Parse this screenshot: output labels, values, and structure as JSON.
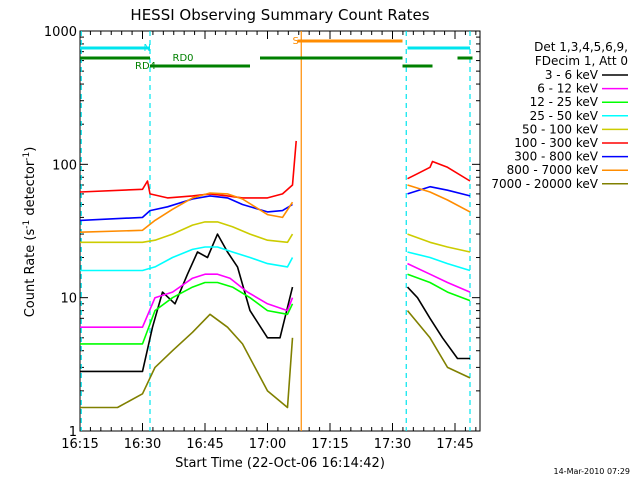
{
  "chart_data": {
    "type": "line",
    "title": "HESSI Observing Summary Count Rates",
    "xlabel": "Start Time (22-Oct-06 16:14:42)",
    "ylabel_main": "Count Rate (s",
    "ylabel_sup1": "-1",
    "ylabel_mid": " detector",
    "ylabel_sup2": "-1",
    "ylabel_end": ")",
    "footer": "14-Mar-2010 07:29",
    "xlim": [
      16.25,
      17.85
    ],
    "ylim": [
      1,
      1000
    ],
    "yscale": "log",
    "x_ticks": [
      {
        "t": 16.25,
        "label": "16:15"
      },
      {
        "t": 16.5,
        "label": "16:30"
      },
      {
        "t": 16.75,
        "label": "16:45"
      },
      {
        "t": 17.0,
        "label": "17:00"
      },
      {
        "t": 17.25,
        "label": "17:15"
      },
      {
        "t": 17.5,
        "label": "17:30"
      },
      {
        "t": 17.75,
        "label": "17:45"
      }
    ],
    "y_ticks": [
      {
        "v": 1,
        "label": "1"
      },
      {
        "v": 10,
        "label": "10"
      },
      {
        "v": 100,
        "label": "100"
      },
      {
        "v": 1000,
        "label": "1000"
      }
    ],
    "legend_header": [
      "Det 1,3,4,5,6,9,",
      "FDecim 1, Att 0"
    ],
    "legend_placement": "right, outside plot",
    "annotations": {
      "N": {
        "label": "N",
        "t": [
          16.25,
          16.53
        ],
        "color": "#00e5ee"
      },
      "N2": {
        "label": "",
        "t": [
          17.56,
          17.81
        ],
        "color": "#00e5ee"
      },
      "S": {
        "label": "S",
        "t": [
          17.12,
          17.54
        ],
        "color": "#ff8c00"
      },
      "RD0": {
        "label": "RD0",
        "t": [
          16.25,
          16.53,
          16.97,
          17.54,
          17.76,
          17.82
        ],
        "color": "#008000"
      },
      "RD4": {
        "label": "RD4",
        "t": [
          16.53,
          16.93,
          17.54,
          17.66
        ],
        "color": "#008000"
      }
    },
    "vlines": [
      {
        "t": 16.255,
        "color": "#00e5ee",
        "style": "dashed"
      },
      {
        "t": 16.53,
        "color": "#00e5ee",
        "style": "dashed"
      },
      {
        "t": 17.135,
        "color": "#ff8c00",
        "style": "solid"
      },
      {
        "t": 17.555,
        "color": "#00e5ee",
        "style": "dashed"
      },
      {
        "t": 17.81,
        "color": "#00e5ee",
        "style": "dashed"
      }
    ],
    "series": [
      {
        "name": "3 - 6 keV",
        "color": "#000000",
        "points": [
          [
            16.25,
            2.8
          ],
          [
            16.5,
            2.8
          ],
          [
            16.54,
            6
          ],
          [
            16.58,
            11
          ],
          [
            16.63,
            9
          ],
          [
            16.68,
            15
          ],
          [
            16.72,
            22
          ],
          [
            16.76,
            20
          ],
          [
            16.8,
            30
          ],
          [
            16.84,
            22
          ],
          [
            16.88,
            17
          ],
          [
            16.93,
            8
          ],
          [
            17.0,
            5
          ],
          [
            17.05,
            5
          ],
          [
            17.1,
            12
          ],
          [
            null,
            null
          ],
          [
            17.56,
            12
          ],
          [
            17.6,
            10
          ],
          [
            17.65,
            7
          ],
          [
            17.7,
            5
          ],
          [
            17.76,
            3.5
          ],
          [
            17.81,
            3.5
          ]
        ]
      },
      {
        "name": "6 - 12 keV",
        "color": "#ff00ff",
        "points": [
          [
            16.25,
            6
          ],
          [
            16.5,
            6
          ],
          [
            16.55,
            10
          ],
          [
            16.62,
            11
          ],
          [
            16.7,
            14
          ],
          [
            16.75,
            15
          ],
          [
            16.8,
            15
          ],
          [
            16.85,
            14
          ],
          [
            16.92,
            11
          ],
          [
            17.0,
            9
          ],
          [
            17.08,
            8
          ],
          [
            17.1,
            10
          ],
          [
            null,
            null
          ],
          [
            17.56,
            18
          ],
          [
            17.65,
            15
          ],
          [
            17.72,
            13
          ],
          [
            17.81,
            11
          ]
        ]
      },
      {
        "name": "12 - 25 keV",
        "color": "#00ff00",
        "points": [
          [
            16.25,
            4.5
          ],
          [
            16.5,
            4.5
          ],
          [
            16.55,
            8
          ],
          [
            16.62,
            10
          ],
          [
            16.7,
            12
          ],
          [
            16.75,
            13
          ],
          [
            16.8,
            13
          ],
          [
            16.86,
            12
          ],
          [
            16.93,
            10
          ],
          [
            17.0,
            8
          ],
          [
            17.08,
            7.5
          ],
          [
            17.1,
            9
          ],
          [
            null,
            null
          ],
          [
            17.56,
            15
          ],
          [
            17.65,
            13
          ],
          [
            17.72,
            11
          ],
          [
            17.81,
            9.5
          ]
        ]
      },
      {
        "name": "25 - 50 keV",
        "color": "#00ffff",
        "points": [
          [
            16.25,
            16
          ],
          [
            16.5,
            16
          ],
          [
            16.55,
            17
          ],
          [
            16.62,
            20
          ],
          [
            16.7,
            23
          ],
          [
            16.75,
            24
          ],
          [
            16.8,
            24
          ],
          [
            16.86,
            22
          ],
          [
            16.93,
            20
          ],
          [
            17.0,
            18
          ],
          [
            17.08,
            17
          ],
          [
            17.1,
            20
          ],
          [
            null,
            null
          ],
          [
            17.56,
            22
          ],
          [
            17.65,
            20
          ],
          [
            17.72,
            18
          ],
          [
            17.81,
            16
          ]
        ]
      },
      {
        "name": "50 - 100 keV",
        "color": "#cccc00",
        "points": [
          [
            16.25,
            26
          ],
          [
            16.5,
            26
          ],
          [
            16.55,
            27
          ],
          [
            16.62,
            30
          ],
          [
            16.7,
            35
          ],
          [
            16.75,
            37
          ],
          [
            16.8,
            37
          ],
          [
            16.86,
            34
          ],
          [
            16.93,
            30
          ],
          [
            17.0,
            27
          ],
          [
            17.08,
            26
          ],
          [
            17.1,
            30
          ],
          [
            null,
            null
          ],
          [
            17.56,
            30
          ],
          [
            17.65,
            26
          ],
          [
            17.72,
            24
          ],
          [
            17.81,
            22
          ]
        ]
      },
      {
        "name": "100 - 300 keV",
        "color": "#ff0000",
        "points": [
          [
            16.25,
            62
          ],
          [
            16.5,
            65
          ],
          [
            16.52,
            75
          ],
          [
            16.53,
            60
          ],
          [
            16.6,
            56
          ],
          [
            16.7,
            58
          ],
          [
            16.77,
            60
          ],
          [
            16.84,
            58
          ],
          [
            16.9,
            56
          ],
          [
            17.0,
            56
          ],
          [
            17.06,
            60
          ],
          [
            17.1,
            70
          ],
          [
            17.115,
            150
          ],
          [
            null,
            null
          ],
          [
            17.56,
            78
          ],
          [
            17.6,
            85
          ],
          [
            17.65,
            95
          ],
          [
            17.66,
            105
          ],
          [
            17.72,
            95
          ],
          [
            17.81,
            75
          ]
        ]
      },
      {
        "name": "300 - 800 keV",
        "color": "#0000ff",
        "points": [
          [
            16.25,
            38
          ],
          [
            16.5,
            40
          ],
          [
            16.53,
            45
          ],
          [
            16.6,
            48
          ],
          [
            16.7,
            55
          ],
          [
            16.77,
            58
          ],
          [
            16.84,
            56
          ],
          [
            16.9,
            50
          ],
          [
            17.0,
            44
          ],
          [
            17.06,
            45
          ],
          [
            17.1,
            50
          ],
          [
            null,
            null
          ],
          [
            17.56,
            60
          ],
          [
            17.65,
            68
          ],
          [
            17.72,
            64
          ],
          [
            17.81,
            58
          ]
        ]
      },
      {
        "name": "800 - 7000 keV",
        "color": "#ff8c00",
        "points": [
          [
            16.25,
            31
          ],
          [
            16.5,
            32
          ],
          [
            16.55,
            38
          ],
          [
            16.62,
            46
          ],
          [
            16.7,
            56
          ],
          [
            16.77,
            61
          ],
          [
            16.84,
            60
          ],
          [
            16.9,
            55
          ],
          [
            17.0,
            42
          ],
          [
            17.06,
            40
          ],
          [
            17.1,
            52
          ],
          [
            null,
            null
          ],
          [
            17.56,
            70
          ],
          [
            17.65,
            62
          ],
          [
            17.72,
            54
          ],
          [
            17.81,
            44
          ]
        ]
      },
      {
        "name": "7000 - 20000 keV",
        "color": "#808000",
        "points": [
          [
            16.25,
            1.5
          ],
          [
            16.4,
            1.5
          ],
          [
            16.5,
            1.9
          ],
          [
            16.55,
            3.0
          ],
          [
            16.62,
            4.0
          ],
          [
            16.7,
            5.5
          ],
          [
            16.77,
            7.5
          ],
          [
            16.84,
            6.0
          ],
          [
            16.9,
            4.5
          ],
          [
            16.95,
            3.0
          ],
          [
            17.0,
            2.0
          ],
          [
            17.08,
            1.5
          ],
          [
            17.1,
            5
          ],
          [
            null,
            null
          ],
          [
            17.56,
            8
          ],
          [
            17.65,
            5
          ],
          [
            17.72,
            3
          ],
          [
            17.81,
            2.5
          ]
        ]
      }
    ]
  }
}
